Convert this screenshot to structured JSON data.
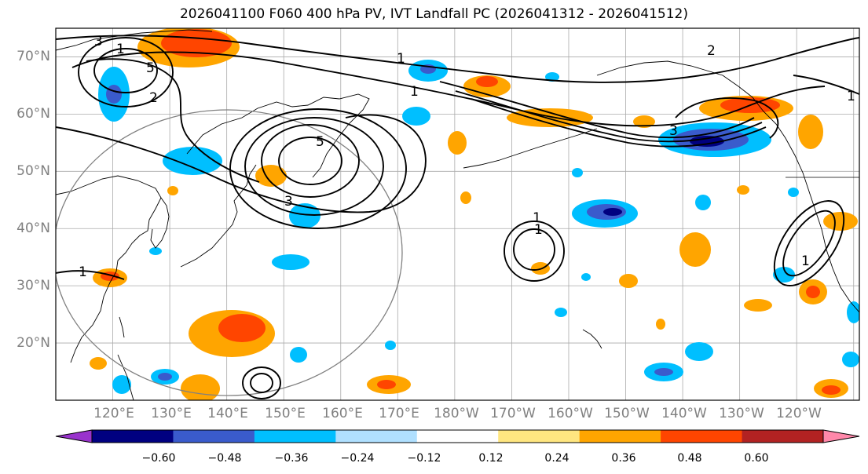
{
  "title": "2026041100 F060 400 hPa PV, IVT Landfall PC (2026041312 - 2026041512)",
  "lat_labels": [
    "70°N",
    "60°N",
    "50°N",
    "40°N",
    "30°N",
    "20°N"
  ],
  "lon_labels": [
    "120°E",
    "130°E",
    "140°E",
    "150°E",
    "160°E",
    "170°E",
    "180°W",
    "170°W",
    "160°W",
    "150°W",
    "140°W",
    "130°W",
    "120°W"
  ],
  "colorbar": {
    "tick_labels": [
      "−0.60",
      "−0.48",
      "−0.36",
      "−0.24",
      "−0.12",
      "0.12",
      "0.24",
      "0.36",
      "0.48",
      "0.60"
    ],
    "colors": [
      "#9933cc",
      "#000080",
      "#3a5bcc",
      "#00bfff",
      "#b0e0ff",
      "#ffffff",
      "#ffe680",
      "#ffa500",
      "#ff4500",
      "#b22222",
      "#ff88aa"
    ],
    "extend": "both"
  },
  "contour_labels": [
    "1",
    "1",
    "1",
    "1",
    "1",
    "1",
    "1",
    "1",
    "2",
    "2",
    "3",
    "3",
    "3",
    "5",
    "5"
  ],
  "map_data": {
    "projection": "plate-carree",
    "lon_range": [
      110,
      251
    ],
    "lat_range": [
      10,
      75
    ],
    "field_shaded": "PV principal component (400 hPa)",
    "field_contoured": "IVT principal component",
    "overlay": "great circle radius ring centered near Japan",
    "grid": true
  }
}
